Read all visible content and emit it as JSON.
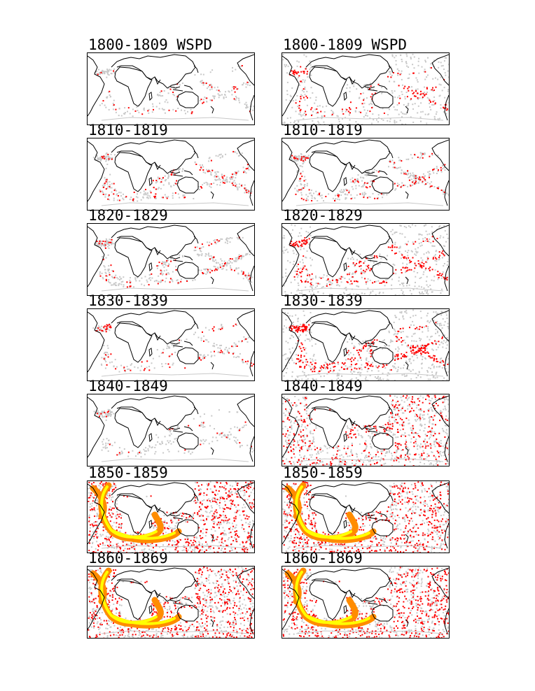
{
  "colors": {
    "land_outline": "#000000",
    "ship_track_gray": "#c8c8c8",
    "density_red": "#ff0000",
    "density_orange": "#ff8c00",
    "density_yellow": "#ffff00"
  },
  "columns": [
    {
      "panels": [
        {
          "title": "1800-1809 WSPD",
          "gray": 0.25,
          "red": 0.05,
          "orange": 0,
          "yellow": 0
        },
        {
          "title": "1810-1819",
          "gray": 0.35,
          "red": 0.1,
          "orange": 0,
          "yellow": 0
        },
        {
          "title": "1820-1829",
          "gray": 0.4,
          "red": 0.1,
          "orange": 0,
          "yellow": 0
        },
        {
          "title": "1830-1839",
          "gray": 0.2,
          "red": 0.08,
          "orange": 0,
          "yellow": 0
        },
        {
          "title": "1840-1849",
          "gray": 0.25,
          "red": 0.03,
          "orange": 0,
          "yellow": 0
        },
        {
          "title": "1850-1859",
          "gray": 0.8,
          "red": 0.8,
          "orange": 0.6,
          "yellow": 0.5
        },
        {
          "title": "1860-1869",
          "gray": 0.8,
          "red": 0.8,
          "orange": 0.6,
          "yellow": 0.6
        }
      ]
    },
    {
      "panels": [
        {
          "title": "1800-1809 WSPD",
          "gray": 0.55,
          "red": 0.15,
          "orange": 0,
          "yellow": 0
        },
        {
          "title": "1810-1819",
          "gray": 0.4,
          "red": 0.12,
          "orange": 0,
          "yellow": 0
        },
        {
          "title": "1820-1829",
          "gray": 0.6,
          "red": 0.25,
          "orange": 0,
          "yellow": 0
        },
        {
          "title": "1830-1839",
          "gray": 0.75,
          "red": 0.35,
          "orange": 0,
          "yellow": 0
        },
        {
          "title": "1840-1849",
          "gray": 0.9,
          "red": 0.55,
          "orange": 0,
          "yellow": 0
        },
        {
          "title": "1850-1859",
          "gray": 0.8,
          "red": 0.8,
          "orange": 0.6,
          "yellow": 0.5
        },
        {
          "title": "1860-1869",
          "gray": 0.8,
          "red": 0.8,
          "orange": 0.6,
          "yellow": 0.6
        }
      ]
    }
  ]
}
